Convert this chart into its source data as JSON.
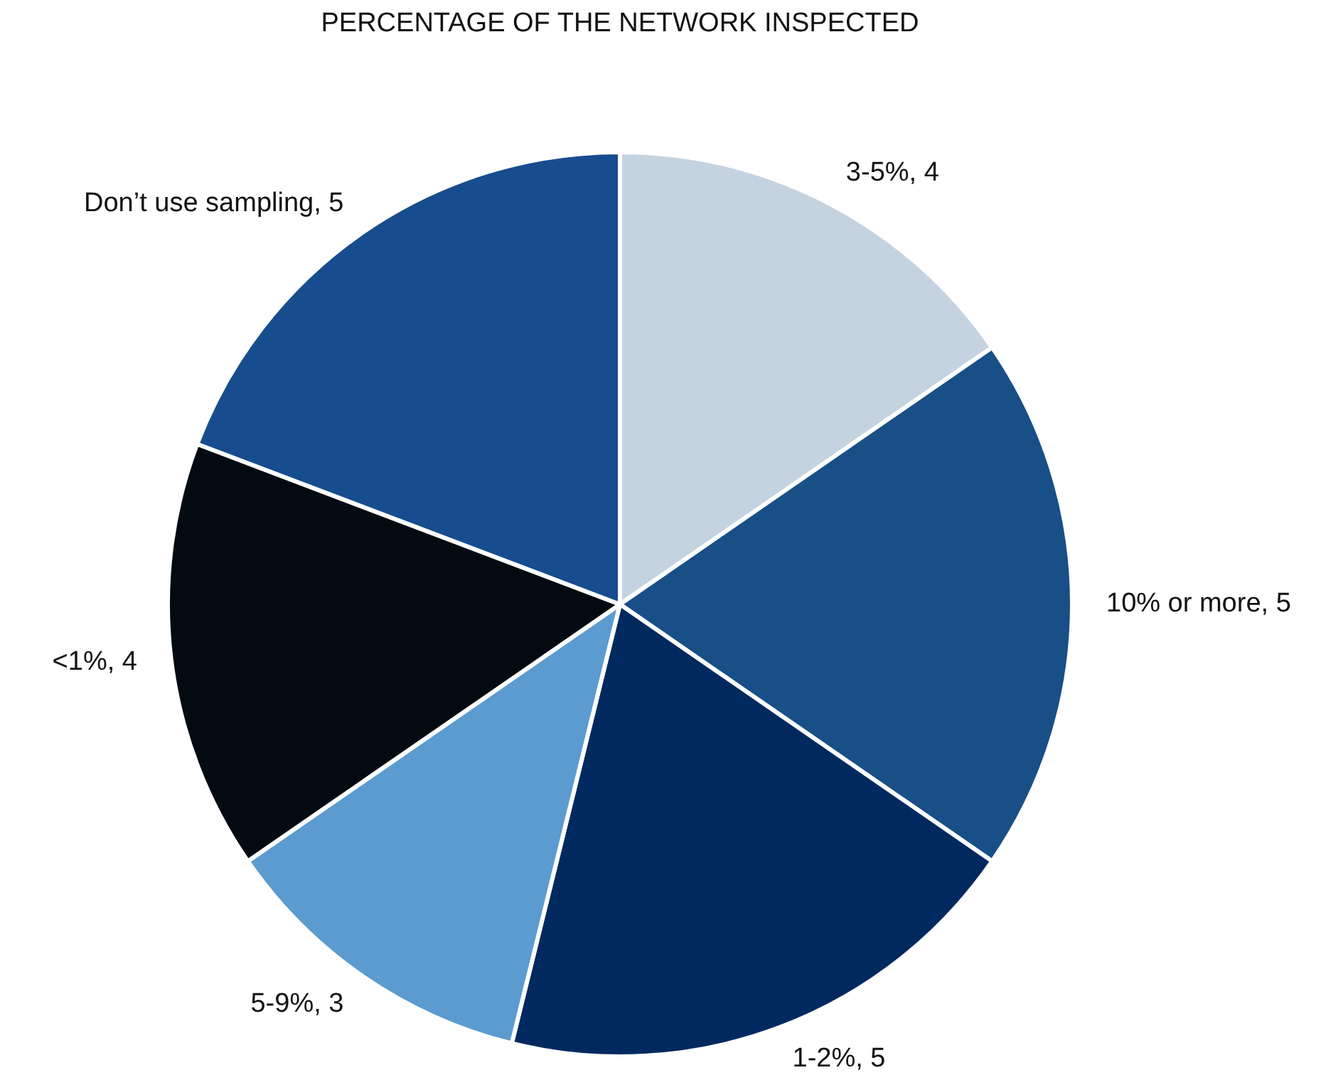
{
  "chart_data": {
    "type": "pie",
    "title": "PERCENTAGE OF THE NETWORK INSPECTED",
    "categories": [
      "3-5%",
      "10% or more",
      "1-2%",
      "5-9%",
      "<1%",
      "Don’t use sampling"
    ],
    "values": [
      4,
      5,
      5,
      3,
      4,
      5
    ],
    "colors": [
      "#c5d3e0",
      "#184f87",
      "#002a5f",
      "#5b9bd0",
      "#040a12",
      "#174c8e"
    ],
    "value_labels": [
      ", 4",
      ", 5",
      ", 5",
      ", 3",
      ", 4",
      ", 5"
    ]
  }
}
